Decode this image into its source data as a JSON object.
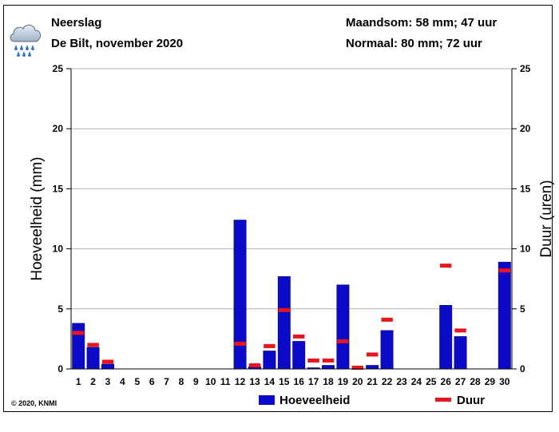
{
  "header": {
    "title": "Neerslag",
    "location": "De Bilt, november 2020",
    "month_total": "Maandsom: 58 mm; 47 uur",
    "normal": "Normaal: 80 mm; 72 uur",
    "icon": "rain-cloud-icon"
  },
  "footer": {
    "copyright": "© 2020, KNMI"
  },
  "colors": {
    "bar": "#0a0ac8",
    "duration": "#e8141e",
    "grid": "#b4b4b4"
  },
  "chart_data": {
    "type": "bar",
    "categories": [
      "1",
      "2",
      "3",
      "4",
      "5",
      "6",
      "7",
      "8",
      "9",
      "10",
      "11",
      "12",
      "13",
      "14",
      "15",
      "16",
      "17",
      "18",
      "19",
      "20",
      "21",
      "22",
      "23",
      "24",
      "25",
      "26",
      "27",
      "28",
      "29",
      "30"
    ],
    "series": [
      {
        "name": "Hoeveelheid",
        "unit": "mm",
        "values": [
          3.8,
          1.8,
          0.4,
          0,
          0,
          0,
          0,
          0,
          0,
          0,
          0,
          12.4,
          0.2,
          1.5,
          7.7,
          2.3,
          0.1,
          0.3,
          7.0,
          0,
          0.3,
          3.2,
          0,
          0,
          0,
          5.3,
          2.7,
          0,
          0,
          8.9
        ]
      },
      {
        "name": "Duur",
        "unit": "uur",
        "values": [
          3.0,
          2.0,
          0.6,
          null,
          null,
          null,
          null,
          null,
          null,
          null,
          null,
          2.1,
          0.3,
          1.9,
          4.9,
          2.7,
          0.7,
          0.7,
          2.3,
          0.1,
          1.2,
          4.1,
          null,
          null,
          null,
          8.6,
          3.2,
          null,
          null,
          8.2
        ]
      }
    ],
    "ylabel": "Hoeveelheid (mm)",
    "y2label": "Duur (uren)",
    "ylim": [
      0,
      25
    ],
    "y2lim": [
      0,
      25
    ],
    "yticks": [
      "0",
      "5",
      "10",
      "15",
      "20",
      "25"
    ],
    "grid": true,
    "legend_position": "bottom"
  }
}
